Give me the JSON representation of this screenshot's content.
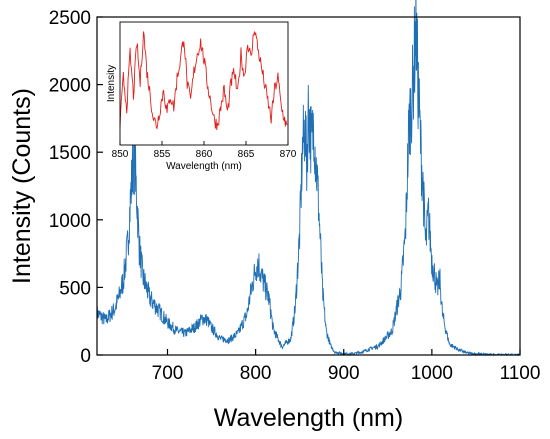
{
  "chart_data": [
    {
      "type": "line",
      "xlabel": "Wavelength (nm)",
      "ylabel": "Intensity (Counts)",
      "xlim": [
        620,
        1100
      ],
      "ylim": [
        0,
        2500
      ],
      "xticks": [
        700,
        800,
        900,
        1000,
        1100
      ],
      "yticks": [
        0,
        500,
        1000,
        1500,
        2000,
        2500
      ],
      "color": "#1f6fb4",
      "grid": false,
      "series": [
        {
          "x": [
            620,
            630,
            640,
            645,
            650,
            655,
            658,
            660,
            662,
            664,
            666,
            668,
            672,
            680,
            690,
            700,
            710,
            720,
            730,
            740,
            745,
            750,
            760,
            770,
            780,
            790,
            795,
            800,
            803,
            806,
            810,
            815,
            820,
            830,
            840,
            845,
            850,
            853,
            856,
            858,
            860,
            862,
            864,
            866,
            868,
            870,
            873,
            876,
            880,
            885,
            890,
            900,
            910,
            920,
            940,
            955,
            965,
            970,
            974,
            978,
            980,
            982,
            984,
            986,
            988,
            990,
            993,
            996,
            1000,
            1003,
            1006,
            1009,
            1012,
            1016,
            1020,
            1030,
            1040,
            1050,
            1060,
            1070,
            1080,
            1090,
            1100
          ],
          "y": [
            310,
            255,
            340,
            430,
            560,
            820,
            1150,
            1350,
            1500,
            1300,
            1060,
            800,
            580,
            420,
            330,
            240,
            180,
            160,
            200,
            270,
            260,
            200,
            120,
            110,
            160,
            300,
            480,
            640,
            690,
            600,
            520,
            420,
            190,
            60,
            120,
            350,
            900,
            1500,
            1700,
            1400,
            1850,
            1650,
            1550,
            1750,
            1450,
            1300,
            900,
            460,
            180,
            70,
            20,
            10,
            10,
            20,
            70,
            180,
            500,
            900,
            1700,
            1950,
            2200,
            2450,
            2050,
            1750,
            1450,
            1250,
            800,
            1050,
            700,
            600,
            480,
            560,
            300,
            180,
            80,
            40,
            15,
            8,
            5,
            3,
            2,
            2,
            2
          ]
        }
      ]
    },
    {
      "type": "line",
      "xlabel": "Wavelength (nm)",
      "ylabel": "Intensity",
      "xlim": [
        850,
        870
      ],
      "xticks": [
        850,
        855,
        860,
        865,
        870
      ],
      "color": "#e0201b",
      "grid": false,
      "series": [
        {
          "x": [
            850.0,
            850.4,
            850.8,
            851.2,
            851.6,
            852.0,
            852.4,
            852.8,
            853.2,
            853.6,
            854.0,
            854.4,
            854.8,
            855.2,
            855.6,
            856.0,
            856.4,
            856.8,
            857.2,
            857.6,
            858.0,
            858.4,
            858.8,
            859.2,
            859.6,
            860.0,
            860.4,
            860.8,
            861.2,
            861.6,
            862.0,
            862.4,
            862.8,
            863.2,
            863.6,
            864.0,
            864.4,
            864.8,
            865.2,
            865.6,
            866.0,
            866.4,
            866.8,
            867.2,
            867.6,
            868.0,
            868.4,
            868.8,
            869.2,
            869.6,
            870.0
          ],
          "y": [
            0.15,
            0.55,
            0.3,
            0.75,
            0.4,
            0.85,
            0.5,
            0.95,
            0.6,
            0.4,
            0.2,
            0.15,
            0.3,
            0.45,
            0.25,
            0.4,
            0.3,
            0.55,
            0.7,
            0.9,
            0.5,
            0.35,
            0.6,
            0.75,
            0.85,
            0.7,
            0.5,
            0.35,
            0.2,
            0.15,
            0.3,
            0.45,
            0.25,
            0.5,
            0.6,
            0.4,
            0.75,
            0.55,
            0.85,
            0.7,
            0.98,
            0.8,
            0.65,
            0.5,
            0.35,
            0.2,
            0.45,
            0.55,
            0.3,
            0.2,
            0.1
          ]
        }
      ]
    }
  ]
}
